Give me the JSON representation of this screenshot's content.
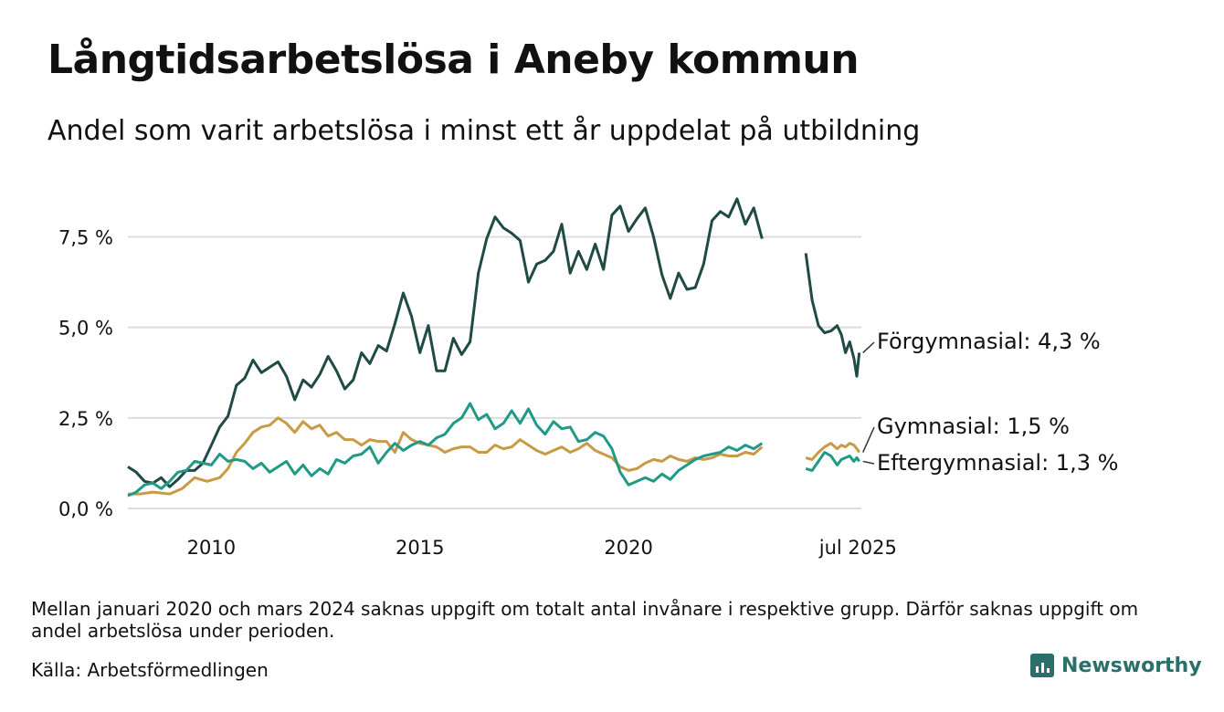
{
  "header": {
    "title": "Långtidsarbetslösa i Aneby kommun",
    "subtitle": "Andel som varit arbetslösa i minst ett år uppdelat på utbildning"
  },
  "footer": {
    "note": "Mellan januari 2020 och mars 2024 saknas uppgift om totalt antal invånare i respektive grupp. Därför saknas uppgift om andel arbetslösa under perioden.",
    "source": "Källa: Arbetsförmedlingen",
    "brand": "Newsworthy"
  },
  "chart_data": {
    "type": "line",
    "title": "Långtidsarbetslösa i Aneby kommun",
    "subtitle": "Andel som varit arbetslösa i minst ett år uppdelat på utbildning",
    "ylim": [
      0,
      9
    ],
    "xlim": [
      2008.0,
      2025.58
    ],
    "yticks": [
      0,
      2.5,
      5,
      7.5
    ],
    "ytick_labels": [
      "0,0 %",
      "2,5 %",
      "5,0 %",
      "7,5 %"
    ],
    "xticks": [
      2010,
      2015,
      2020,
      2025.5
    ],
    "xtick_labels": [
      "2010",
      "2015",
      "2020",
      "jul 2025"
    ],
    "grid": true,
    "series": [
      {
        "name": "Förgymnasial",
        "label": "Förgymnasial: 4,3 %",
        "color": "#1f4a45",
        "segments": [
          [
            [
              2008.0,
              1.15
            ],
            [
              2008.2,
              1.0
            ],
            [
              2008.4,
              0.75
            ],
            [
              2008.6,
              0.7
            ],
            [
              2008.8,
              0.85
            ],
            [
              2009.0,
              0.6
            ],
            [
              2009.2,
              0.8
            ],
            [
              2009.4,
              1.05
            ],
            [
              2009.6,
              1.05
            ],
            [
              2009.8,
              1.25
            ],
            [
              2010.0,
              1.75
            ],
            [
              2010.2,
              2.25
            ],
            [
              2010.4,
              2.55
            ],
            [
              2010.6,
              3.4
            ],
            [
              2010.8,
              3.6
            ],
            [
              2011.0,
              4.1
            ],
            [
              2011.2,
              3.75
            ],
            [
              2011.4,
              3.9
            ],
            [
              2011.6,
              4.05
            ],
            [
              2011.8,
              3.65
            ],
            [
              2012.0,
              3.0
            ],
            [
              2012.2,
              3.55
            ],
            [
              2012.4,
              3.35
            ],
            [
              2012.6,
              3.7
            ],
            [
              2012.8,
              4.2
            ],
            [
              2013.0,
              3.8
            ],
            [
              2013.2,
              3.3
            ],
            [
              2013.4,
              3.55
            ],
            [
              2013.6,
              4.3
            ],
            [
              2013.8,
              4.0
            ],
            [
              2014.0,
              4.5
            ],
            [
              2014.2,
              4.35
            ],
            [
              2014.4,
              5.1
            ],
            [
              2014.6,
              5.95
            ],
            [
              2014.8,
              5.3
            ],
            [
              2015.0,
              4.3
            ],
            [
              2015.2,
              5.05
            ],
            [
              2015.4,
              3.8
            ],
            [
              2015.6,
              3.8
            ],
            [
              2015.8,
              4.7
            ],
            [
              2016.0,
              4.25
            ],
            [
              2016.2,
              4.6
            ],
            [
              2016.4,
              6.5
            ],
            [
              2016.6,
              7.45
            ],
            [
              2016.8,
              8.05
            ],
            [
              2017.0,
              7.75
            ],
            [
              2017.2,
              7.6
            ],
            [
              2017.4,
              7.4
            ],
            [
              2017.6,
              6.25
            ],
            [
              2017.8,
              6.75
            ],
            [
              2018.0,
              6.85
            ],
            [
              2018.2,
              7.1
            ],
            [
              2018.4,
              7.85
            ],
            [
              2018.6,
              6.5
            ],
            [
              2018.8,
              7.1
            ],
            [
              2019.0,
              6.6
            ],
            [
              2019.2,
              7.3
            ],
            [
              2019.4,
              6.6
            ],
            [
              2019.6,
              8.1
            ],
            [
              2019.8,
              8.35
            ],
            [
              2020.0,
              7.65
            ],
            [
              2020.2,
              8.0
            ],
            [
              2020.4,
              8.3
            ],
            [
              2020.6,
              7.5
            ],
            [
              2020.8,
              6.45
            ],
            [
              2021.0,
              5.8
            ],
            [
              2021.2,
              6.5
            ],
            [
              2021.4,
              6.05
            ],
            [
              2021.6,
              6.1
            ],
            [
              2021.8,
              6.75
            ],
            [
              2022.0,
              7.95
            ],
            [
              2022.2,
              8.2
            ],
            [
              2022.4,
              8.05
            ],
            [
              2022.6,
              8.55
            ],
            [
              2022.8,
              7.85
            ],
            [
              2023.0,
              8.3
            ],
            [
              2023.2,
              7.45
            ]
          ],
          [
            [
              2024.25,
              7.05
            ],
            [
              2024.4,
              5.75
            ],
            [
              2024.55,
              5.05
            ],
            [
              2024.7,
              4.85
            ],
            [
              2024.85,
              4.9
            ],
            [
              2025.0,
              5.05
            ],
            [
              2025.1,
              4.8
            ],
            [
              2025.2,
              4.3
            ],
            [
              2025.3,
              4.6
            ],
            [
              2025.4,
              4.15
            ],
            [
              2025.47,
              3.65
            ],
            [
              2025.53,
              4.3
            ]
          ]
        ]
      },
      {
        "name": "Gymnasial",
        "label": "Gymnasial: 1,5 %",
        "color": "#c99a45",
        "segments": [
          [
            [
              2008.0,
              0.4
            ],
            [
              2008.3,
              0.4
            ],
            [
              2008.6,
              0.45
            ],
            [
              2009.0,
              0.4
            ],
            [
              2009.3,
              0.55
            ],
            [
              2009.6,
              0.85
            ],
            [
              2009.9,
              0.75
            ],
            [
              2010.2,
              0.85
            ],
            [
              2010.4,
              1.1
            ],
            [
              2010.6,
              1.55
            ],
            [
              2010.8,
              1.8
            ],
            [
              2011.0,
              2.1
            ],
            [
              2011.2,
              2.25
            ],
            [
              2011.4,
              2.3
            ],
            [
              2011.6,
              2.5
            ],
            [
              2011.8,
              2.35
            ],
            [
              2012.0,
              2.1
            ],
            [
              2012.2,
              2.4
            ],
            [
              2012.4,
              2.2
            ],
            [
              2012.6,
              2.3
            ],
            [
              2012.8,
              2.0
            ],
            [
              2013.0,
              2.1
            ],
            [
              2013.2,
              1.9
            ],
            [
              2013.4,
              1.9
            ],
            [
              2013.6,
              1.75
            ],
            [
              2013.8,
              1.9
            ],
            [
              2014.0,
              1.85
            ],
            [
              2014.2,
              1.85
            ],
            [
              2014.4,
              1.55
            ],
            [
              2014.6,
              2.1
            ],
            [
              2014.8,
              1.9
            ],
            [
              2015.0,
              1.8
            ],
            [
              2015.2,
              1.75
            ],
            [
              2015.4,
              1.7
            ],
            [
              2015.6,
              1.55
            ],
            [
              2015.8,
              1.65
            ],
            [
              2016.0,
              1.7
            ],
            [
              2016.2,
              1.7
            ],
            [
              2016.4,
              1.55
            ],
            [
              2016.6,
              1.55
            ],
            [
              2016.8,
              1.75
            ],
            [
              2017.0,
              1.65
            ],
            [
              2017.2,
              1.7
            ],
            [
              2017.4,
              1.9
            ],
            [
              2017.6,
              1.75
            ],
            [
              2017.8,
              1.6
            ],
            [
              2018.0,
              1.5
            ],
            [
              2018.2,
              1.6
            ],
            [
              2018.4,
              1.7
            ],
            [
              2018.6,
              1.55
            ],
            [
              2018.8,
              1.65
            ],
            [
              2019.0,
              1.8
            ],
            [
              2019.2,
              1.6
            ],
            [
              2019.4,
              1.5
            ],
            [
              2019.6,
              1.4
            ],
            [
              2019.8,
              1.15
            ],
            [
              2020.0,
              1.05
            ],
            [
              2020.2,
              1.1
            ],
            [
              2020.4,
              1.25
            ],
            [
              2020.6,
              1.35
            ],
            [
              2020.8,
              1.3
            ],
            [
              2021.0,
              1.45
            ],
            [
              2021.2,
              1.35
            ],
            [
              2021.4,
              1.3
            ],
            [
              2021.6,
              1.4
            ],
            [
              2021.8,
              1.35
            ],
            [
              2022.0,
              1.4
            ],
            [
              2022.2,
              1.5
            ],
            [
              2022.4,
              1.45
            ],
            [
              2022.6,
              1.45
            ],
            [
              2022.8,
              1.55
            ],
            [
              2023.0,
              1.5
            ],
            [
              2023.2,
              1.7
            ]
          ],
          [
            [
              2024.25,
              1.4
            ],
            [
              2024.4,
              1.35
            ],
            [
              2024.55,
              1.55
            ],
            [
              2024.7,
              1.7
            ],
            [
              2024.85,
              1.8
            ],
            [
              2025.0,
              1.65
            ],
            [
              2025.1,
              1.75
            ],
            [
              2025.2,
              1.7
            ],
            [
              2025.3,
              1.8
            ],
            [
              2025.4,
              1.75
            ],
            [
              2025.47,
              1.65
            ],
            [
              2025.53,
              1.55
            ]
          ]
        ]
      },
      {
        "name": "Eftergymnasial",
        "label": "Eftergymnasial: 1,3 %",
        "color": "#1e9a86",
        "segments": [
          [
            [
              2008.0,
              0.35
            ],
            [
              2008.2,
              0.45
            ],
            [
              2008.4,
              0.65
            ],
            [
              2008.6,
              0.7
            ],
            [
              2008.8,
              0.55
            ],
            [
              2009.0,
              0.75
            ],
            [
              2009.2,
              1.0
            ],
            [
              2009.4,
              1.05
            ],
            [
              2009.6,
              1.3
            ],
            [
              2009.8,
              1.25
            ],
            [
              2010.0,
              1.2
            ],
            [
              2010.2,
              1.5
            ],
            [
              2010.4,
              1.3
            ],
            [
              2010.6,
              1.35
            ],
            [
              2010.8,
              1.3
            ],
            [
              2011.0,
              1.1
            ],
            [
              2011.2,
              1.25
            ],
            [
              2011.4,
              1.0
            ],
            [
              2011.6,
              1.15
            ],
            [
              2011.8,
              1.3
            ],
            [
              2012.0,
              0.95
            ],
            [
              2012.2,
              1.2
            ],
            [
              2012.4,
              0.9
            ],
            [
              2012.6,
              1.1
            ],
            [
              2012.8,
              0.95
            ],
            [
              2013.0,
              1.35
            ],
            [
              2013.2,
              1.25
            ],
            [
              2013.4,
              1.45
            ],
            [
              2013.6,
              1.5
            ],
            [
              2013.8,
              1.7
            ],
            [
              2014.0,
              1.25
            ],
            [
              2014.2,
              1.55
            ],
            [
              2014.4,
              1.8
            ],
            [
              2014.6,
              1.6
            ],
            [
              2014.8,
              1.75
            ],
            [
              2015.0,
              1.85
            ],
            [
              2015.2,
              1.75
            ],
            [
              2015.4,
              1.95
            ],
            [
              2015.6,
              2.05
            ],
            [
              2015.8,
              2.35
            ],
            [
              2016.0,
              2.5
            ],
            [
              2016.2,
              2.9
            ],
            [
              2016.4,
              2.45
            ],
            [
              2016.6,
              2.6
            ],
            [
              2016.8,
              2.2
            ],
            [
              2017.0,
              2.35
            ],
            [
              2017.2,
              2.7
            ],
            [
              2017.4,
              2.35
            ],
            [
              2017.6,
              2.75
            ],
            [
              2017.8,
              2.3
            ],
            [
              2018.0,
              2.05
            ],
            [
              2018.2,
              2.4
            ],
            [
              2018.4,
              2.2
            ],
            [
              2018.6,
              2.25
            ],
            [
              2018.8,
              1.85
            ],
            [
              2019.0,
              1.9
            ],
            [
              2019.2,
              2.1
            ],
            [
              2019.4,
              2.0
            ],
            [
              2019.6,
              1.65
            ],
            [
              2019.8,
              1.0
            ],
            [
              2020.0,
              0.65
            ],
            [
              2020.2,
              0.75
            ],
            [
              2020.4,
              0.85
            ],
            [
              2020.6,
              0.75
            ],
            [
              2020.8,
              0.95
            ],
            [
              2021.0,
              0.8
            ],
            [
              2021.2,
              1.05
            ],
            [
              2021.4,
              1.2
            ],
            [
              2021.6,
              1.35
            ],
            [
              2021.8,
              1.45
            ],
            [
              2022.0,
              1.5
            ],
            [
              2022.2,
              1.55
            ],
            [
              2022.4,
              1.7
            ],
            [
              2022.6,
              1.6
            ],
            [
              2022.8,
              1.75
            ],
            [
              2023.0,
              1.65
            ],
            [
              2023.2,
              1.8
            ]
          ],
          [
            [
              2024.25,
              1.1
            ],
            [
              2024.4,
              1.05
            ],
            [
              2024.55,
              1.3
            ],
            [
              2024.7,
              1.55
            ],
            [
              2024.85,
              1.45
            ],
            [
              2025.0,
              1.2
            ],
            [
              2025.1,
              1.35
            ],
            [
              2025.2,
              1.4
            ],
            [
              2025.3,
              1.45
            ],
            [
              2025.4,
              1.3
            ],
            [
              2025.47,
              1.4
            ],
            [
              2025.53,
              1.3
            ]
          ]
        ]
      }
    ]
  }
}
